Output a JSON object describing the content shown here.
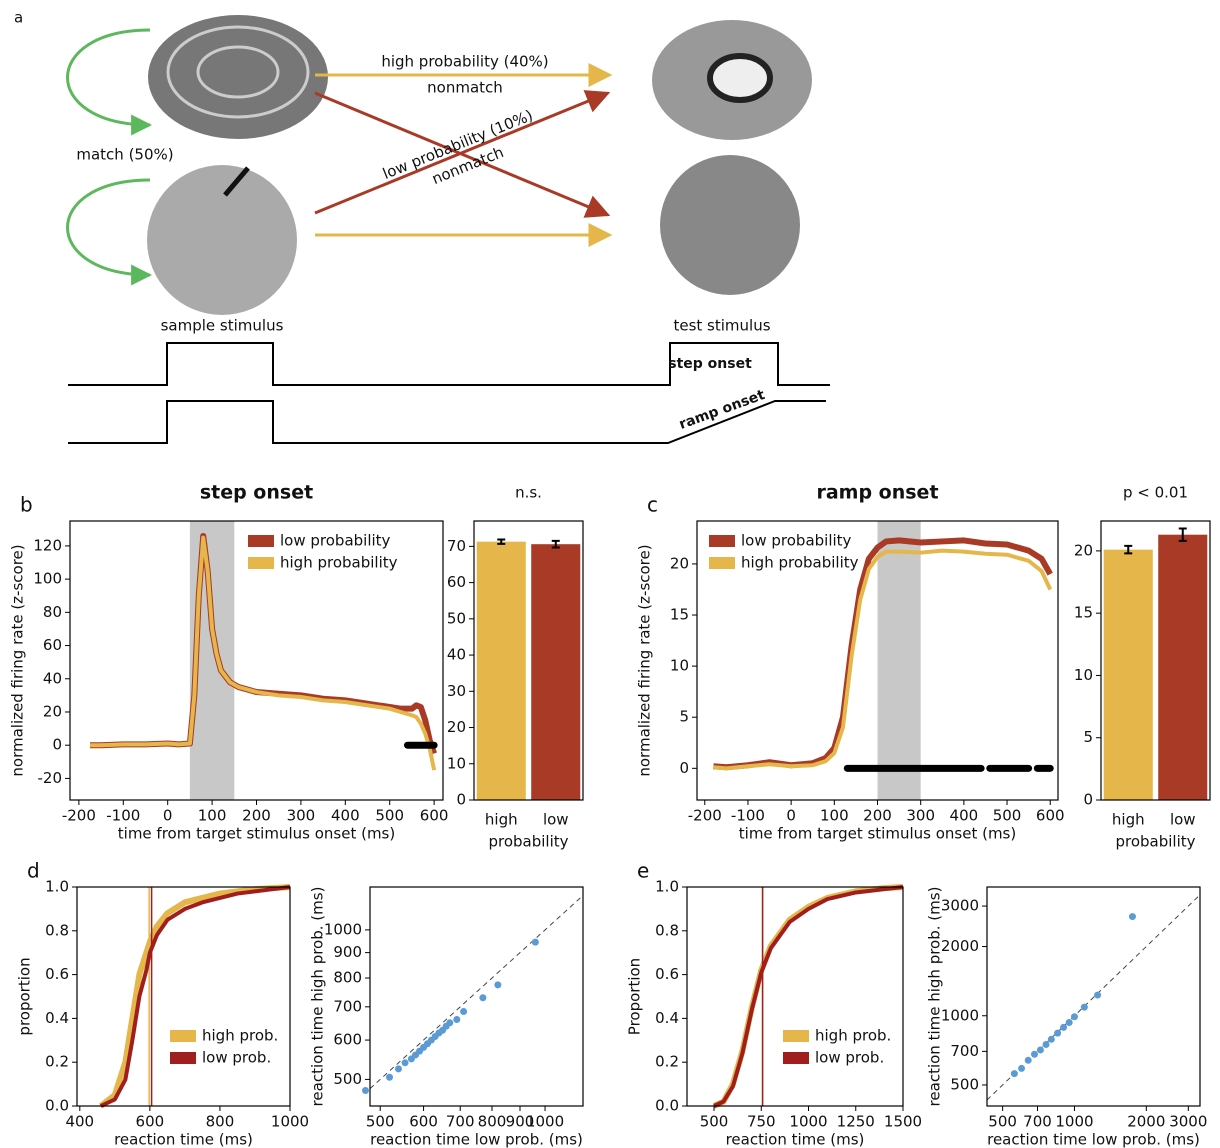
{
  "diagram": {
    "panel": "a",
    "high_label": "high probability (40%)",
    "high_sub": "nonmatch",
    "low_label": "low probability (10%)",
    "low_sub": "nonmatch",
    "match_label": "match (50%)",
    "sample_label": "sample stimulus",
    "test_label": "test stimulus",
    "step_label": "step onset",
    "ramp_label": "ramp onset"
  },
  "chart_data": [
    {
      "type": "line",
      "panel": "b",
      "title": "step onset",
      "xlabel": "time from target stimulus onset (ms)",
      "ylabel": "normalized firing rate (z-score)",
      "x": [
        -175,
        -150,
        -100,
        -50,
        0,
        25,
        50,
        60,
        70,
        80,
        90,
        100,
        110,
        120,
        140,
        160,
        200,
        250,
        300,
        350,
        400,
        450,
        500,
        525,
        550,
        560,
        570,
        580,
        590,
        600
      ],
      "series": [
        {
          "name": "low probability",
          "color": "#a83a26",
          "values": [
            0,
            0,
            0.5,
            0.5,
            1,
            0.5,
            1,
            30,
            90,
            126,
            105,
            70,
            55,
            45,
            38,
            35,
            32,
            31,
            30,
            28,
            27,
            25,
            23,
            22,
            22,
            24,
            23,
            15,
            3,
            -5
          ]
        },
        {
          "name": "high probability",
          "color": "#e5b64a",
          "values": [
            0,
            0,
            0.5,
            0.5,
            1,
            0.5,
            1,
            30,
            90,
            125,
            105,
            70,
            55,
            45,
            38,
            35,
            32,
            30,
            29,
            27,
            26,
            24,
            22,
            20,
            18,
            17,
            13,
            7,
            -2,
            -15
          ]
        }
      ],
      "shade": [
        50,
        150
      ],
      "significant": [
        [
          540,
          600
        ]
      ],
      "legend": "upper right",
      "xlim": [
        -220,
        620
      ],
      "ylim": [
        -33,
        135
      ],
      "xticks": [
        -200,
        -100,
        0,
        100,
        200,
        300,
        400,
        500,
        600
      ],
      "yticks": [
        -20,
        0,
        20,
        40,
        60,
        80,
        100,
        120
      ]
    },
    {
      "type": "bar",
      "title": "n.s.",
      "xlabel": "probability",
      "categories": [
        "high",
        "low"
      ],
      "values": [
        71.3,
        70.6
      ],
      "errors": [
        0.6,
        0.9
      ],
      "colors": [
        "#e5b64a",
        "#a83a26"
      ],
      "ylim": [
        0,
        77
      ],
      "yticks": [
        0,
        10,
        20,
        30,
        40,
        50,
        60,
        70
      ]
    },
    {
      "type": "line",
      "panel": "c",
      "title": "ramp onset",
      "xlabel": "time from target stimulus onset (ms)",
      "ylabel": "normalized firing rate (z-score)",
      "x": [
        -180,
        -150,
        -100,
        -50,
        0,
        50,
        80,
        100,
        120,
        140,
        160,
        180,
        200,
        220,
        250,
        300,
        350,
        400,
        450,
        500,
        550,
        580,
        600
      ],
      "series": [
        {
          "name": "low probability",
          "color": "#a83a26",
          "values": [
            0.2,
            0.1,
            0.3,
            0.6,
            0.3,
            0.5,
            1,
            2,
            5,
            12,
            17.5,
            20.5,
            21.6,
            22.2,
            22.3,
            22.1,
            22.2,
            22.3,
            22,
            21.9,
            21.3,
            20.5,
            19
          ]
        },
        {
          "name": "high probability",
          "color": "#e5b64a",
          "values": [
            0.1,
            0,
            0.2,
            0.4,
            0.2,
            0.3,
            0.7,
            1.5,
            4,
            11,
            16.5,
            19.5,
            20.7,
            21.2,
            21.2,
            21.1,
            21.3,
            21.2,
            21,
            20.9,
            20.3,
            19.3,
            17.5
          ]
        }
      ],
      "shade": [
        200,
        300
      ],
      "significant": [
        [
          130,
          440
        ],
        [
          460,
          550
        ],
        [
          570,
          600
        ]
      ],
      "legend": "upper left",
      "xlim": [
        -218,
        618
      ],
      "ylim": [
        -3.1,
        24.2
      ],
      "xticks": [
        -200,
        -100,
        0,
        100,
        200,
        300,
        400,
        500,
        600
      ],
      "yticks": [
        0,
        5,
        10,
        15,
        20
      ]
    },
    {
      "type": "bar",
      "title": "p < 0.01",
      "xlabel": "probability",
      "categories": [
        "high",
        "low"
      ],
      "values": [
        20.1,
        21.3
      ],
      "errors": [
        0.3,
        0.5
      ],
      "colors": [
        "#e5b64a",
        "#a83a26"
      ],
      "ylim": [
        0,
        22.4
      ],
      "yticks": [
        0,
        5,
        10,
        15,
        20
      ]
    },
    {
      "type": "line",
      "panel": "d",
      "xlabel": "reaction time (ms)",
      "ylabel": "proportion",
      "x": [
        460,
        500,
        530,
        550,
        570,
        590,
        600,
        620,
        650,
        700,
        750,
        800,
        850,
        900,
        950,
        1000
      ],
      "series": [
        {
          "name": "high prob.",
          "color": "#e5b64a",
          "marker_x": 598,
          "values": [
            0,
            0.05,
            0.2,
            0.4,
            0.6,
            0.7,
            0.75,
            0.82,
            0.88,
            0.93,
            0.95,
            0.97,
            0.98,
            0.99,
            0.995,
            1
          ]
        },
        {
          "name": "low prob.",
          "color": "#a01e1e",
          "marker_x": 605,
          "values": [
            0,
            0.03,
            0.12,
            0.3,
            0.5,
            0.62,
            0.7,
            0.78,
            0.85,
            0.9,
            0.93,
            0.95,
            0.97,
            0.98,
            0.99,
            1
          ]
        }
      ],
      "legend": "lower right",
      "xlim": [
        392,
        1000
      ],
      "ylim": [
        0,
        1
      ],
      "xticks": [
        400,
        600,
        800,
        1000
      ],
      "yticks": [
        {
          "value": 0,
          "label": "0.0"
        },
        0.2,
        0.4,
        0.6,
        0.8,
        {
          "value": 1,
          "label": "1.0"
        }
      ]
    },
    {
      "type": "scatter",
      "xlabel": "reaction time low prob. (ms)",
      "ylabel": "reaction time high prob. (ms)",
      "color": "#5b9bd5",
      "log": true,
      "diagonal": true,
      "x": [
        470,
        520,
        540,
        555,
        570,
        580,
        590,
        600,
        610,
        620,
        630,
        640,
        650,
        660,
        670,
        690,
        710,
        770,
        820,
        960
      ],
      "y": [
        475,
        505,
        525,
        540,
        550,
        560,
        570,
        580,
        590,
        600,
        610,
        620,
        628,
        640,
        650,
        660,
        685,
        730,
        775,
        945
      ],
      "xlim": [
        479,
        1173
      ],
      "ylim": [
        442,
        1220
      ],
      "xticks": [
        500,
        600,
        700,
        800,
        900,
        1000
      ],
      "yticks": [
        500,
        600,
        700,
        800,
        900,
        1000
      ]
    },
    {
      "type": "line",
      "panel": "e",
      "xlabel": "reaction time (ms)",
      "ylabel": "Proportion",
      "x": [
        500,
        550,
        600,
        650,
        700,
        750,
        800,
        900,
        1000,
        1100,
        1250,
        1400,
        1500
      ],
      "series": [
        {
          "name": "high prob.",
          "color": "#e5b64a",
          "marker_x": 757,
          "values": [
            0,
            0.02,
            0.1,
            0.25,
            0.45,
            0.62,
            0.73,
            0.85,
            0.91,
            0.95,
            0.98,
            0.995,
            1
          ]
        },
        {
          "name": "low prob.",
          "color": "#a01e1e",
          "marker_x": 757,
          "values": [
            0,
            0.02,
            0.09,
            0.24,
            0.44,
            0.61,
            0.72,
            0.84,
            0.9,
            0.945,
            0.975,
            0.99,
            1
          ]
        }
      ],
      "legend": "lower right",
      "xlim": [
        357,
        1500
      ],
      "ylim": [
        0,
        1
      ],
      "xticks": [
        500,
        750,
        1000,
        1250,
        1500
      ],
      "yticks": [
        {
          "value": 0,
          "label": "0.0"
        },
        0.2,
        0.4,
        0.6,
        0.8,
        {
          "value": 1,
          "label": "1.0"
        }
      ]
    },
    {
      "type": "scatter",
      "xlabel": "reaction time low prob. (ms)",
      "ylabel": "reaction time high prob. (ms)",
      "color": "#5b9bd5",
      "log": true,
      "diagonal": true,
      "x": [
        560,
        600,
        640,
        680,
        720,
        760,
        800,
        850,
        900,
        950,
        1000,
        1100,
        1250,
        1750
      ],
      "y": [
        560,
        590,
        640,
        680,
        710,
        750,
        790,
        840,
        890,
        935,
        990,
        1090,
        1230,
        2700
      ],
      "xlim": [
        430,
        3358
      ],
      "ylim": [
        405,
        3631
      ],
      "xticks": [
        500,
        700,
        1000,
        2000,
        3000
      ],
      "yticks": [
        500,
        700,
        1000,
        2000,
        3000
      ]
    }
  ]
}
